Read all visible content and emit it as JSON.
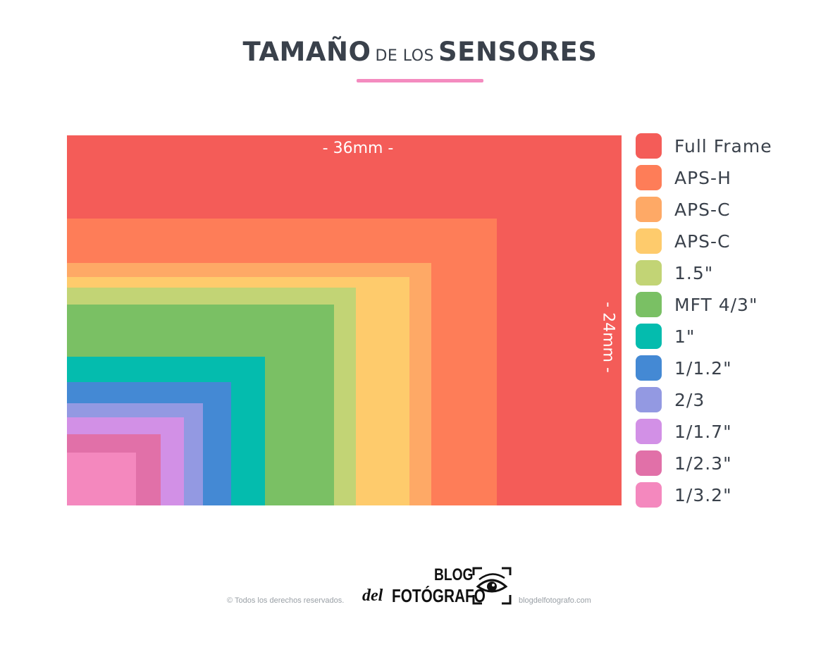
{
  "header": {
    "title_part1": "TAMAÑO",
    "title_part2": "DE LOS",
    "title_part3": "SENSORES",
    "underline_color": "#f48bbf"
  },
  "dimensions": {
    "width_label": "- 36mm -",
    "height_label": "- 24mm -"
  },
  "sensors": [
    {
      "label": "Full Frame",
      "color": "#f45c58"
    },
    {
      "label": "APS-H",
      "color": "#fe7d58"
    },
    {
      "label": "APS-C",
      "color": "#fea966"
    },
    {
      "label": "APS-C",
      "color": "#fecb6c"
    },
    {
      "label": "1.5\"",
      "color": "#c2d475"
    },
    {
      "label": "MFT 4/3\"",
      "color": "#7ac064"
    },
    {
      "label": "1\"",
      "color": "#04bcae"
    },
    {
      "label": "1/1.2\"",
      "color": "#4489d4"
    },
    {
      "label": "2/3",
      "color": "#9399e2"
    },
    {
      "label": "1/1.7\"",
      "color": "#d290e6"
    },
    {
      "label": "1/2.3\"",
      "color": "#e170a8"
    },
    {
      "label": "1/3.2\"",
      "color": "#f488be"
    }
  ],
  "footer": {
    "copyright": "© Todos los derechos reservados.",
    "website": "blogdelfotografo.com",
    "logo_line1": "BLOG",
    "logo_del": "del",
    "logo_line2": "FOTÓGRAFO"
  }
}
